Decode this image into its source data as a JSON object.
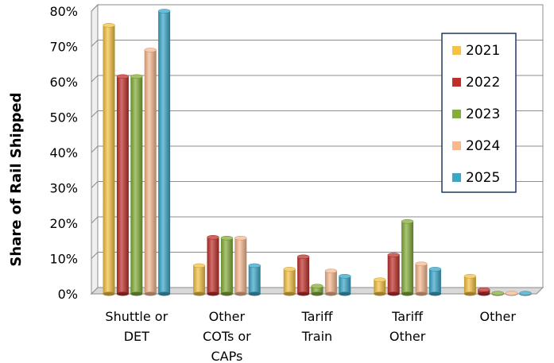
{
  "chart_data": {
    "type": "bar",
    "ylabel": "Share of Rail Shipped",
    "ylim": [
      0,
      80
    ],
    "y_ticks": [
      "0%",
      "10%",
      "20%",
      "30%",
      "40%",
      "50%",
      "60%",
      "70%",
      "80%"
    ],
    "categories": [
      [
        "Shuttle or",
        "DET"
      ],
      [
        "Other",
        "COTs or",
        "CAPs"
      ],
      [
        "Tariff",
        "Train"
      ],
      [
        "Tariff",
        "Other"
      ],
      [
        "Other"
      ]
    ],
    "series": [
      {
        "name": "2021",
        "color": "#f5c242",
        "values": [
          76,
          8,
          7,
          4,
          5
        ]
      },
      {
        "name": "2022",
        "color": "#c0302b",
        "values": [
          61.5,
          16,
          10.5,
          11,
          1.2
        ]
      },
      {
        "name": "2023",
        "color": "#84ad3a",
        "values": [
          61.5,
          15.8,
          2.2,
          20.5,
          0.2
        ]
      },
      {
        "name": "2024",
        "color": "#f7b88f",
        "values": [
          69,
          15.8,
          6.5,
          8.5,
          0.2
        ]
      },
      {
        "name": "2025",
        "color": "#3aa7c9",
        "values": [
          80,
          8,
          5,
          7,
          0.2
        ]
      }
    ],
    "legend_position": "right",
    "grid": true,
    "style": "3d-bar"
  }
}
